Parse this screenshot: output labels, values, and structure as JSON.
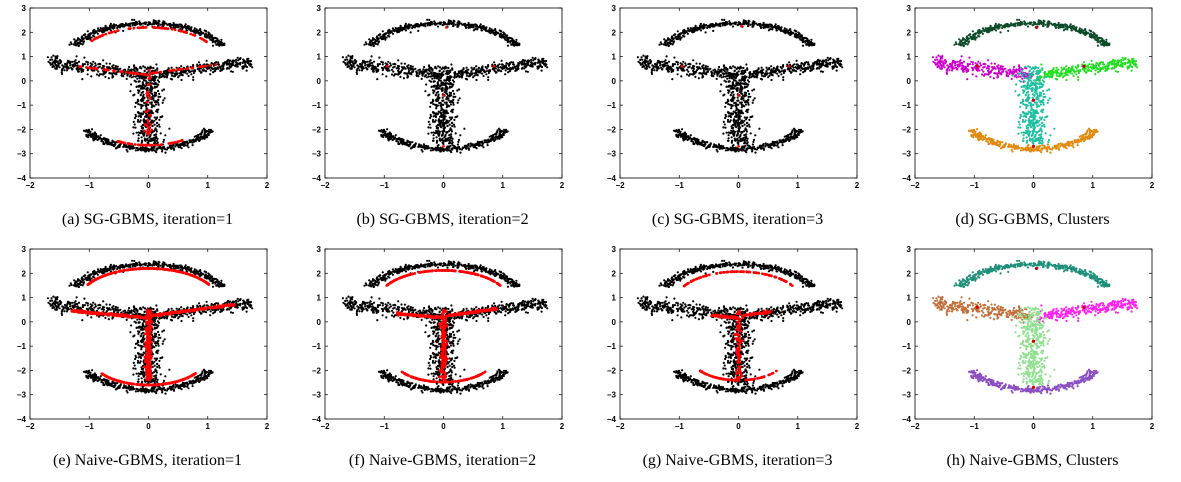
{
  "colors": {
    "data_point": "#000000",
    "mode_point": "#ff0000",
    "axis": "#000000"
  },
  "chart_data": [
    {
      "type": "scatter",
      "caption": "(a)  SG-GBMS, iteration=1",
      "xlim": [
        -2,
        2
      ],
      "ylim": [
        -4,
        3
      ],
      "xticks": [
        "−2",
        "−1",
        "0",
        "1",
        "2"
      ],
      "yticks": [
        "−4",
        "−3",
        "−2",
        "−1",
        "0",
        "1",
        "2",
        "3"
      ],
      "points": "black",
      "red_overlay": "arc",
      "clusters": false
    },
    {
      "type": "scatter",
      "caption": "(b)  SG-GBMS, iteration=2",
      "xlim": [
        -2,
        2
      ],
      "ylim": [
        -4,
        3
      ],
      "xticks": [
        "−2",
        "−1",
        "0",
        "1",
        "2"
      ],
      "yticks": [
        "−4",
        "−3",
        "−2",
        "−1",
        "0",
        "1",
        "2",
        "3"
      ],
      "points": "black",
      "red_overlay": "few",
      "clusters": false
    },
    {
      "type": "scatter",
      "caption": "(c)  SG-GBMS, iteration=3",
      "xlim": [
        -2,
        2
      ],
      "ylim": [
        -4,
        3
      ],
      "xticks": [
        "−2",
        "−1",
        "0",
        "1",
        "2"
      ],
      "yticks": [
        "−4",
        "−3",
        "−2",
        "−1",
        "0",
        "1",
        "2",
        "3"
      ],
      "points": "black",
      "red_overlay": "fewer",
      "clusters": false
    },
    {
      "type": "scatter",
      "caption": "(d)  SG-GBMS, Clusters",
      "xlim": [
        -2,
        2
      ],
      "ylim": [
        -4,
        3
      ],
      "xticks": [
        "−2",
        "−1",
        "0",
        "1",
        "2"
      ],
      "yticks": [
        "−4",
        "−3",
        "−2",
        "−1",
        "0",
        "1",
        "2",
        "3"
      ],
      "points": "clusters",
      "cluster_colors": [
        "#0d4a2a",
        "#cc00cc",
        "#22dd22",
        "#1fbfa0",
        "#e08a10"
      ],
      "clusters": true
    },
    {
      "type": "scatter",
      "caption": "(e)  Naive-GBMS, iteration=1",
      "xlim": [
        -2,
        2
      ],
      "ylim": [
        -4,
        3
      ],
      "xticks": [
        "−2",
        "−1",
        "0",
        "1",
        "2"
      ],
      "yticks": [
        "−4",
        "−3",
        "−2",
        "−1",
        "0",
        "1",
        "2",
        "3"
      ],
      "points": "black",
      "red_overlay": "dense",
      "clusters": false
    },
    {
      "type": "scatter",
      "caption": "(f)  Naive-GBMS, iteration=2",
      "xlim": [
        -2,
        2
      ],
      "ylim": [
        -4,
        3
      ],
      "xticks": [
        "−2",
        "−1",
        "0",
        "1",
        "2"
      ],
      "yticks": [
        "−4",
        "−3",
        "−2",
        "−1",
        "0",
        "1",
        "2",
        "3"
      ],
      "points": "black",
      "red_overlay": "medium",
      "clusters": false
    },
    {
      "type": "scatter",
      "caption": "(g)  Naive-GBMS, iteration=3",
      "xlim": [
        -2,
        2
      ],
      "ylim": [
        -4,
        3
      ],
      "xticks": [
        "−2",
        "−1",
        "0",
        "1",
        "2"
      ],
      "yticks": [
        "−4",
        "−3",
        "−2",
        "−1",
        "0",
        "1",
        "2",
        "3"
      ],
      "points": "black",
      "red_overlay": "sparse",
      "clusters": false
    },
    {
      "type": "scatter",
      "caption": "(h)  Naive-GBMS, Clusters",
      "xlim": [
        -2,
        2
      ],
      "ylim": [
        -4,
        3
      ],
      "xticks": [
        "−2",
        "−1",
        "0",
        "1",
        "2"
      ],
      "yticks": [
        "−4",
        "−3",
        "−2",
        "−1",
        "0",
        "1",
        "2",
        "3"
      ],
      "points": "clusters",
      "cluster_colors": [
        "#1f8f7a",
        "#c0703a",
        "#ff22ee",
        "#90e090",
        "#8a4fc0"
      ],
      "clusters": true
    }
  ]
}
